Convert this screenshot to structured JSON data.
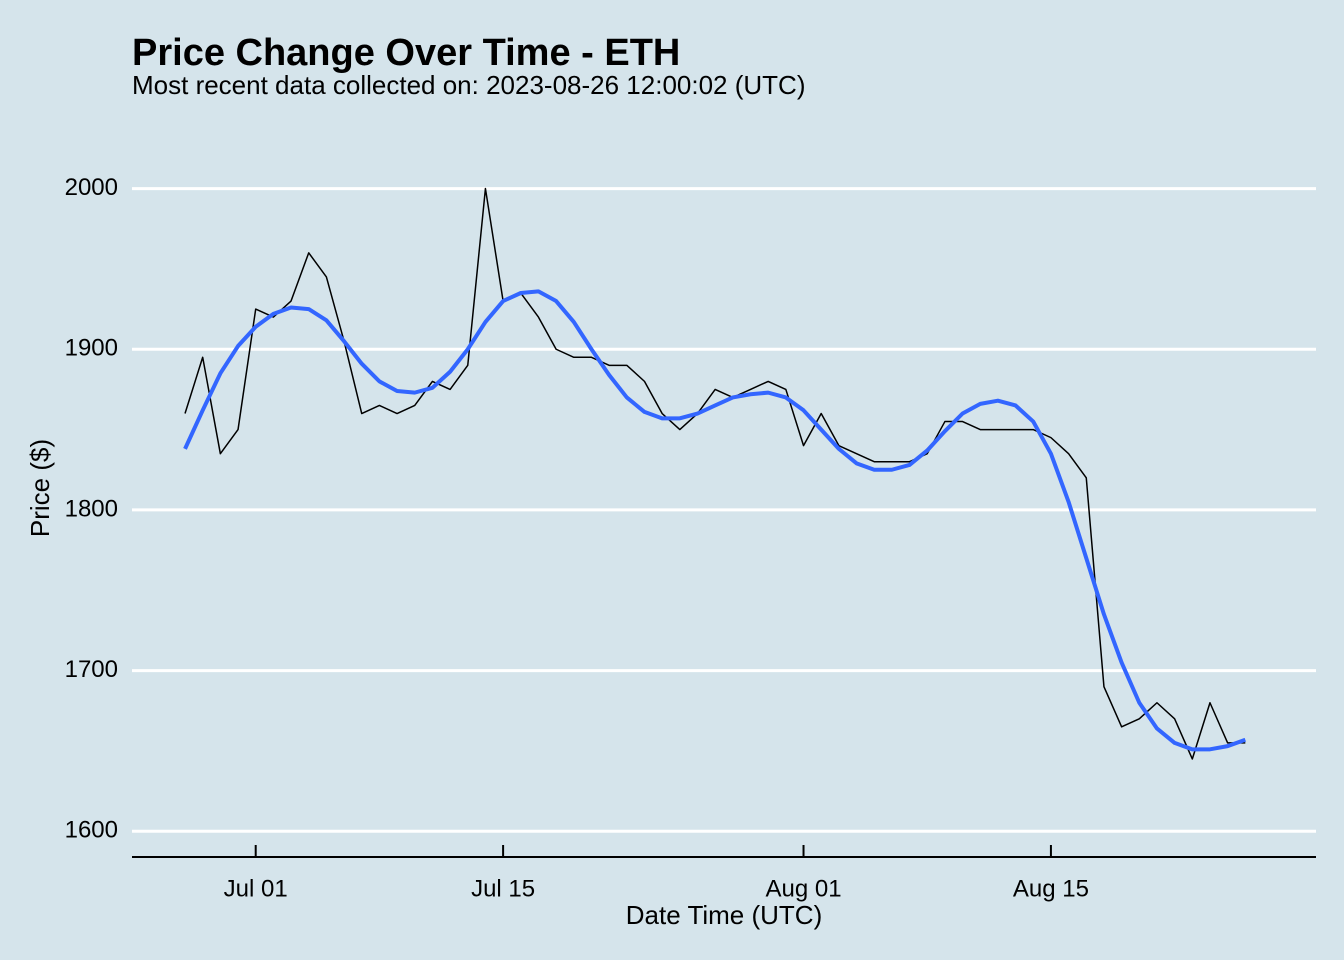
{
  "chart_data": {
    "type": "line",
    "title": "Price Change Over Time - ETH",
    "subtitle": "Most recent data collected on: 2023-08-26 12:00:02 (UTC)",
    "x_label": "Date Time (UTC)",
    "y_label": "Price ($)",
    "x": [
      "Jun 27",
      "Jun 28",
      "Jun 29",
      "Jun 30",
      "Jul 01",
      "Jul 02",
      "Jul 03",
      "Jul 04",
      "Jul 05",
      "Jul 06",
      "Jul 07",
      "Jul 08",
      "Jul 09",
      "Jul 10",
      "Jul 11",
      "Jul 12",
      "Jul 13",
      "Jul 14",
      "Jul 15",
      "Jul 16",
      "Jul 17",
      "Jul 18",
      "Jul 19",
      "Jul 20",
      "Jul 21",
      "Jul 22",
      "Jul 23",
      "Jul 24",
      "Jul 25",
      "Jul 26",
      "Jul 27",
      "Jul 28",
      "Jul 29",
      "Jul 30",
      "Jul 31",
      "Aug 01",
      "Aug 02",
      "Aug 03",
      "Aug 04",
      "Aug 05",
      "Aug 06",
      "Aug 07",
      "Aug 08",
      "Aug 09",
      "Aug 10",
      "Aug 11",
      "Aug 12",
      "Aug 13",
      "Aug 14",
      "Aug 15",
      "Aug 16",
      "Aug 17",
      "Aug 18",
      "Aug 19",
      "Aug 20",
      "Aug 21",
      "Aug 22",
      "Aug 23",
      "Aug 24",
      "Aug 25",
      "Aug 26"
    ],
    "series": [
      {
        "color": "#000000",
        "width": 1.5,
        "values": [
          1860,
          1895,
          1835,
          1850,
          1925,
          1920,
          1930,
          1960,
          1945,
          1905,
          1860,
          1865,
          1860,
          1865,
          1880,
          1875,
          1890,
          2000,
          1930,
          1935,
          1920,
          1900,
          1895,
          1895,
          1890,
          1890,
          1880,
          1860,
          1850,
          1860,
          1875,
          1870,
          1875,
          1880,
          1875,
          1840,
          1860,
          1840,
          1835,
          1830,
          1830,
          1830,
          1835,
          1855,
          1855,
          1850,
          1850,
          1850,
          1850,
          1845,
          1835,
          1820,
          1690,
          1665,
          1670,
          1680,
          1670,
          1645,
          1680,
          1655,
          1655
        ]
      },
      {
        "color": "#3366ff",
        "width": 4,
        "values": [
          1838,
          1862,
          1885,
          1902,
          1914,
          1922,
          1926,
          1925,
          1918,
          1905,
          1891,
          1880,
          1874,
          1873,
          1876,
          1886,
          1900,
          1917,
          1930,
          1935,
          1936,
          1930,
          1917,
          1900,
          1884,
          1870,
          1861,
          1857,
          1857,
          1860,
          1865,
          1870,
          1872,
          1873,
          1870,
          1862,
          1850,
          1838,
          1829,
          1825,
          1825,
          1828,
          1837,
          1849,
          1860,
          1866,
          1868,
          1865,
          1855,
          1835,
          1805,
          1770,
          1735,
          1705,
          1680,
          1664,
          1655,
          1651,
          1651,
          1653,
          1657
        ]
      }
    ],
    "xlim": [
      "Jun 24",
      "Aug 30"
    ],
    "xticks": [
      "Jul 01",
      "Jul 15",
      "Aug 01",
      "Aug 15"
    ],
    "ylim": [
      1584,
      2024
    ],
    "yticks": [
      1600,
      1700,
      1800,
      1900,
      2000
    ],
    "grid": true,
    "background": "#d5e4eb"
  }
}
